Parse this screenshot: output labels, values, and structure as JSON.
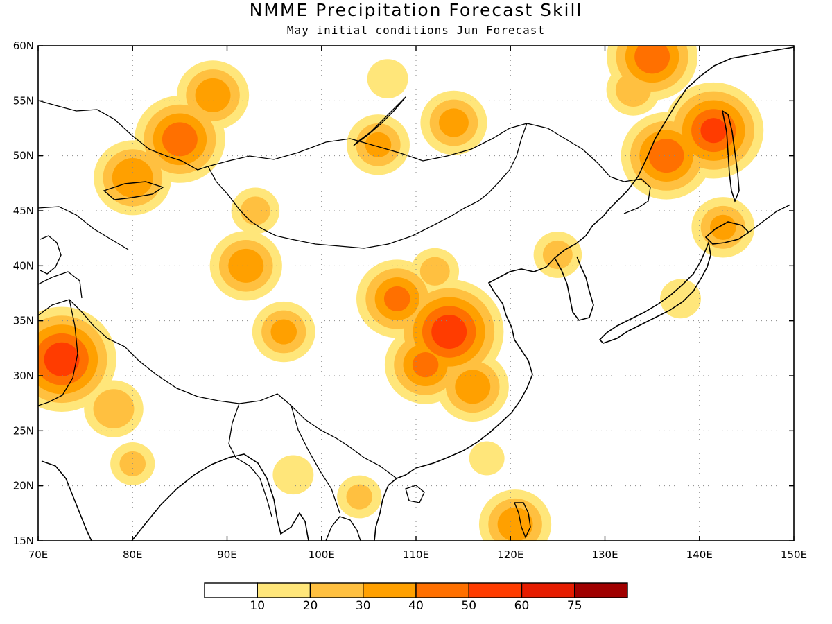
{
  "header": {
    "title": "NMME Precipitation Forecast Skill",
    "subtitle": "May initial conditions  Jun Forecast"
  },
  "chart_data": {
    "type": "heatmap",
    "title": "NMME Precipitation Forecast Skill",
    "subtitle": "May initial conditions  Jun Forecast",
    "lon_range": [
      70,
      150
    ],
    "lat_range": [
      15,
      60
    ],
    "lon_ticks": [
      {
        "value": 70,
        "label": "70E"
      },
      {
        "value": 80,
        "label": "80E"
      },
      {
        "value": 90,
        "label": "90E"
      },
      {
        "value": 100,
        "label": "100E"
      },
      {
        "value": 110,
        "label": "110E"
      },
      {
        "value": 120,
        "label": "120E"
      },
      {
        "value": 130,
        "label": "130E"
      },
      {
        "value": 140,
        "label": "140E"
      },
      {
        "value": 150,
        "label": "150E"
      }
    ],
    "lat_ticks": [
      {
        "value": 15,
        "label": "15N"
      },
      {
        "value": 20,
        "label": "20N"
      },
      {
        "value": 25,
        "label": "25N"
      },
      {
        "value": 30,
        "label": "30N"
      },
      {
        "value": 35,
        "label": "35N"
      },
      {
        "value": 40,
        "label": "40N"
      },
      {
        "value": 45,
        "label": "45N"
      },
      {
        "value": 50,
        "label": "50N"
      },
      {
        "value": 55,
        "label": "55N"
      },
      {
        "value": 60,
        "label": "60N"
      }
    ],
    "grid": true,
    "colorbar": {
      "colors": [
        "#ffffff",
        "#ffe67a",
        "#ffc040",
        "#ffa000",
        "#ff7000",
        "#ff3c00",
        "#e61c00",
        "#a00000"
      ],
      "labels": [
        "10",
        "20",
        "30",
        "40",
        "50",
        "60",
        "75"
      ]
    },
    "skill_regions": [
      {
        "lon": 85,
        "lat": 51.5,
        "value": 45
      },
      {
        "lon": 80,
        "lat": 48,
        "value": 38
      },
      {
        "lon": 88.5,
        "lat": 55.5,
        "value": 35
      },
      {
        "lon": 92,
        "lat": 40,
        "value": 35
      },
      {
        "lon": 93,
        "lat": 45,
        "value": 22
      },
      {
        "lon": 96,
        "lat": 34,
        "value": 30
      },
      {
        "lon": 72.5,
        "lat": 31.5,
        "value": 55
      },
      {
        "lon": 78,
        "lat": 27,
        "value": 28
      },
      {
        "lon": 80,
        "lat": 22,
        "value": 20
      },
      {
        "lon": 108,
        "lat": 37,
        "value": 40
      },
      {
        "lon": 113.5,
        "lat": 34,
        "value": 55
      },
      {
        "lon": 111,
        "lat": 31,
        "value": 40
      },
      {
        "lon": 116,
        "lat": 29,
        "value": 35
      },
      {
        "lon": 112,
        "lat": 39.5,
        "value": 22
      },
      {
        "lon": 114,
        "lat": 53,
        "value": 32
      },
      {
        "lon": 106,
        "lat": 51,
        "value": 30
      },
      {
        "lon": 107,
        "lat": 57,
        "value": 18
      },
      {
        "lon": 136.5,
        "lat": 50,
        "value": 45
      },
      {
        "lon": 135,
        "lat": 59,
        "value": 45
      },
      {
        "lon": 141.5,
        "lat": 52.3,
        "value": 50
      },
      {
        "lon": 133,
        "lat": 56,
        "value": 25
      },
      {
        "lon": 125,
        "lat": 41,
        "value": 22
      },
      {
        "lon": 97,
        "lat": 21,
        "value": 18
      },
      {
        "lon": 104,
        "lat": 19,
        "value": 20
      },
      {
        "lon": 117.5,
        "lat": 22.5,
        "value": 15
      },
      {
        "lon": 120.5,
        "lat": 16.5,
        "value": 35
      },
      {
        "lon": 142.5,
        "lat": 43.5,
        "value": 30
      },
      {
        "lon": 138,
        "lat": 37,
        "value": 18
      }
    ]
  }
}
